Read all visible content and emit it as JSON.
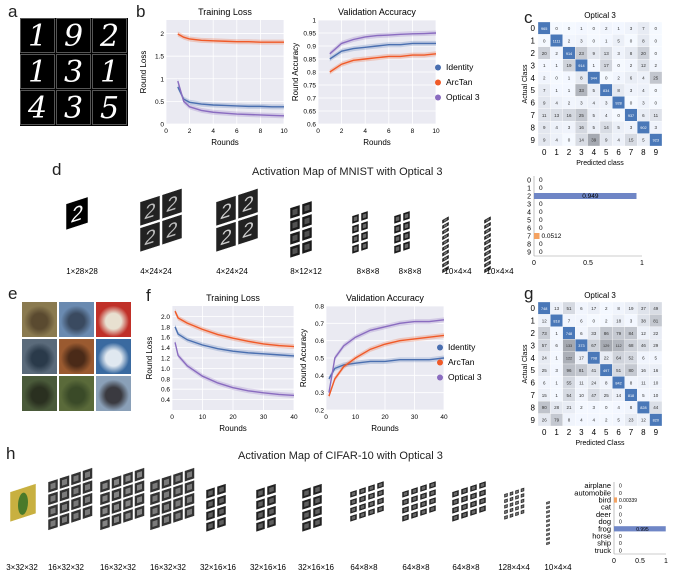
{
  "panel_labels": [
    "a",
    "b",
    "c",
    "d",
    "e",
    "f",
    "g",
    "h"
  ],
  "mnist": {
    "digits": [
      "1",
      "9",
      "2",
      "1",
      "3",
      "1",
      "4",
      "3",
      "5"
    ],
    "loss_title": "Training Loss",
    "acc_title": "Validation Accuracy",
    "loss_ylabel": "Round Loss",
    "acc_ylabel": "Round Accuracy",
    "xlabel": "Rounds",
    "conf_title": "Optical 3",
    "conf_ylabel": "Actual Class",
    "conf_xlabel": "Predicted class",
    "act_title": "Activation Map of MNIST with Optical 3",
    "act_dims": [
      "1×28×28",
      "4×24×24",
      "4×24×24",
      "8×12×12",
      "8×8×8",
      "8×8×8",
      "10×4×4",
      "10×4×4"
    ],
    "input_digit": "2"
  },
  "cifar": {
    "loss_title": "Training Loss",
    "acc_title": "Validation Accuracy",
    "loss_ylabel": "Round Loss",
    "acc_ylabel": "Round Accuracy",
    "xlabel": "Rounds",
    "conf_title": "Optical 3",
    "conf_ylabel": "Actual Class",
    "conf_xlabel": "Predicted Class",
    "act_title": "Activation Map of CIFAR-10 with Optical 3",
    "act_dims": [
      "3×32×32",
      "16×32×32",
      "16×32×32",
      "16×32×32",
      "32×16×16",
      "32×16×16",
      "32×16×16",
      "64×8×8",
      "64×8×8",
      "64×8×8",
      "128×4×4",
      "10×4×4"
    ]
  },
  "legend": [
    "Identity",
    "ArcTan",
    "Optical 3"
  ],
  "colors": {
    "identity": "#4a6fb0",
    "arctan": "#f05a28",
    "optical": "#8a6cc0",
    "conf_dark": "#4a78b8",
    "bar_blue": "#6f86c6",
    "bar_orange": "#f4a261"
  },
  "chart_data": [
    {
      "type": "line",
      "title": "Training Loss",
      "xlabel": "Rounds",
      "ylabel": "Round Loss",
      "xlim": [
        0,
        10
      ],
      "ylim": [
        0,
        2.3
      ],
      "xticks": [
        0,
        2,
        4,
        6,
        8,
        10
      ],
      "yticks": [
        0,
        0.5,
        1,
        1.5,
        2
      ],
      "series": [
        {
          "name": "Identity",
          "x": [
            1,
            1.5,
            2,
            3,
            4,
            5,
            6,
            7,
            8,
            9,
            10
          ],
          "values": [
            0.82,
            0.55,
            0.48,
            0.44,
            0.42,
            0.41,
            0.4,
            0.39,
            0.39,
            0.38,
            0.38
          ]
        },
        {
          "name": "ArcTan",
          "x": [
            1,
            1.5,
            2,
            3,
            4,
            5,
            6,
            7,
            8,
            9,
            10
          ],
          "values": [
            1.99,
            1.92,
            1.88,
            1.85,
            1.84,
            1.83,
            1.82,
            1.82,
            1.81,
            1.81,
            1.81
          ]
        },
        {
          "name": "Optical 3",
          "x": [
            1,
            1.5,
            2,
            3,
            4,
            5,
            6,
            7,
            8,
            9,
            10
          ],
          "values": [
            0.95,
            0.5,
            0.38,
            0.3,
            0.26,
            0.24,
            0.22,
            0.21,
            0.2,
            0.19,
            0.18
          ]
        }
      ]
    },
    {
      "type": "line",
      "title": "Validation Accuracy",
      "xlabel": "Rounds",
      "ylabel": "Round Accuracy",
      "xlim": [
        0,
        10
      ],
      "ylim": [
        0.6,
        1.0
      ],
      "xticks": [
        0,
        2,
        4,
        6,
        8,
        10
      ],
      "yticks": [
        0.6,
        0.65,
        0.7,
        0.75,
        0.8,
        0.85,
        0.9,
        0.95,
        1.0
      ],
      "series": [
        {
          "name": "Identity",
          "x": [
            1,
            2,
            3,
            4,
            5,
            6,
            7,
            8,
            9,
            10
          ],
          "values": [
            0.85,
            0.88,
            0.89,
            0.895,
            0.9,
            0.905,
            0.905,
            0.91,
            0.91,
            0.91
          ]
        },
        {
          "name": "ArcTan",
          "x": [
            1,
            2,
            3,
            4,
            5,
            6,
            7,
            8,
            9,
            10
          ],
          "values": [
            0.8,
            0.83,
            0.845,
            0.85,
            0.855,
            0.86,
            0.86,
            0.865,
            0.865,
            0.87
          ]
        },
        {
          "name": "Optical 3",
          "x": [
            1,
            2,
            3,
            4,
            5,
            6,
            7,
            8,
            9,
            10
          ],
          "values": [
            0.87,
            0.91,
            0.925,
            0.935,
            0.94,
            0.942,
            0.945,
            0.947,
            0.948,
            0.95
          ]
        }
      ]
    },
    {
      "type": "heatmap",
      "title": "Optical 3",
      "xlabel": "Predicted class",
      "ylabel": "Actual Class",
      "labels": [
        "0",
        "1",
        "2",
        "3",
        "4",
        "5",
        "6",
        "7",
        "8",
        "9"
      ],
      "matrix": [
        [
          965,
          0,
          0,
          1,
          0,
          2,
          1,
          3,
          7,
          0
        ],
        [
          0,
          1111,
          2,
          3,
          0,
          1,
          5,
          0,
          8,
          0
        ],
        [
          20,
          2,
          914,
          23,
          9,
          13,
          3,
          8,
          20,
          0
        ],
        [
          1,
          1,
          19,
          914,
          1,
          17,
          0,
          2,
          12,
          2
        ],
        [
          2,
          0,
          1,
          8,
          944,
          0,
          2,
          6,
          4,
          25
        ],
        [
          7,
          1,
          1,
          33,
          5,
          834,
          8,
          3,
          4,
          0
        ],
        [
          9,
          4,
          2,
          3,
          4,
          3,
          928,
          0,
          3,
          0
        ],
        [
          11,
          13,
          16,
          25,
          5,
          4,
          0,
          937,
          6,
          11
        ],
        [
          9,
          4,
          3,
          16,
          5,
          14,
          5,
          3,
          902,
          3
        ],
        [
          9,
          4,
          0,
          14,
          39,
          9,
          4,
          15,
          5,
          923
        ]
      ]
    },
    {
      "type": "bar",
      "orientation": "horizontal",
      "categories": [
        "0",
        "1",
        "2",
        "3",
        "4",
        "5",
        "6",
        "7",
        "8",
        "9"
      ],
      "values": [
        0,
        0,
        0.949,
        0,
        0,
        0,
        0,
        0.0512,
        0,
        0
      ],
      "value_labels": [
        "0",
        "0",
        "0.949",
        "0",
        "0",
        "0",
        "0",
        "0.0512",
        "0",
        "0"
      ],
      "xticks": [
        0,
        0.5,
        1
      ],
      "xlim": [
        0,
        1
      ]
    },
    {
      "type": "line",
      "title": "Training Loss",
      "xlabel": "Rounds",
      "ylabel": "Round Loss",
      "xlim": [
        0,
        40
      ],
      "ylim": [
        0.2,
        2.2
      ],
      "xticks": [
        0,
        10,
        20,
        30,
        40
      ],
      "yticks": [
        0.4,
        0.6,
        0.8,
        1.0,
        1.2,
        1.4,
        1.6,
        1.8,
        2.0
      ],
      "series": [
        {
          "name": "Identity",
          "x": [
            1,
            2,
            5,
            10,
            15,
            20,
            25,
            30,
            35,
            40
          ],
          "values": [
            1.8,
            1.66,
            1.55,
            1.45,
            1.38,
            1.33,
            1.3,
            1.28,
            1.26,
            1.24
          ]
        },
        {
          "name": "ArcTan",
          "x": [
            1,
            2,
            5,
            10,
            15,
            20,
            25,
            30,
            35,
            40
          ],
          "values": [
            2.1,
            1.97,
            1.87,
            1.75,
            1.65,
            1.58,
            1.52,
            1.47,
            1.44,
            1.42
          ]
        },
        {
          "name": "Optical 3",
          "x": [
            1,
            2,
            5,
            10,
            15,
            20,
            25,
            30,
            35,
            40
          ],
          "values": [
            1.5,
            1.25,
            1.05,
            0.85,
            0.72,
            0.63,
            0.57,
            0.53,
            0.5,
            0.48
          ]
        }
      ]
    },
    {
      "type": "line",
      "title": "Validation Accuracy",
      "xlabel": "Rounds",
      "ylabel": "Round Accuracy",
      "xlim": [
        0,
        40
      ],
      "ylim": [
        0.2,
        0.8
      ],
      "xticks": [
        0,
        10,
        20,
        30,
        40
      ],
      "yticks": [
        0.2,
        0.3,
        0.4,
        0.5,
        0.6,
        0.7,
        0.8
      ],
      "series": [
        {
          "name": "Identity",
          "x": [
            1,
            3,
            6,
            10,
            15,
            20,
            25,
            30,
            35,
            40
          ],
          "values": [
            0.38,
            0.44,
            0.46,
            0.47,
            0.48,
            0.48,
            0.49,
            0.49,
            0.49,
            0.5
          ]
        },
        {
          "name": "ArcTan",
          "x": [
            1,
            3,
            6,
            10,
            15,
            20,
            25,
            30,
            35,
            40
          ],
          "values": [
            0.28,
            0.38,
            0.45,
            0.5,
            0.55,
            0.58,
            0.6,
            0.61,
            0.62,
            0.63
          ]
        },
        {
          "name": "Optical 3",
          "x": [
            1,
            3,
            6,
            10,
            15,
            20,
            25,
            30,
            35,
            40
          ],
          "values": [
            0.3,
            0.5,
            0.57,
            0.62,
            0.66,
            0.68,
            0.7,
            0.71,
            0.71,
            0.72
          ]
        }
      ]
    },
    {
      "type": "heatmap",
      "title": "Optical 3",
      "xlabel": "Predicted Class",
      "ylabel": "Actual Class",
      "labels": [
        "0",
        "1",
        "2",
        "3",
        "4",
        "5",
        "6",
        "7",
        "8",
        "9"
      ],
      "matrix": [
        [
          748,
          13,
          51,
          6,
          17,
          2,
          8,
          19,
          37,
          49
        ],
        [
          12,
          818,
          7,
          6,
          0,
          2,
          18,
          3,
          38,
          81
        ],
        [
          73,
          1,
          748,
          6,
          33,
          86,
          79,
          84,
          12,
          22
        ],
        [
          57,
          6,
          133,
          373,
          67,
          129,
          112,
          68,
          46,
          29
        ],
        [
          24,
          1,
          122,
          17,
          708,
          22,
          64,
          52,
          6,
          5
        ],
        [
          25,
          3,
          96,
          81,
          41,
          497,
          51,
          80,
          16,
          16
        ],
        [
          6,
          1,
          55,
          11,
          24,
          8,
          842,
          8,
          11,
          10
        ],
        [
          15,
          1,
          54,
          10,
          47,
          25,
          14,
          818,
          5,
          10
        ],
        [
          90,
          28,
          21,
          2,
          3,
          0,
          4,
          8,
          828,
          44
        ],
        [
          26,
          79,
          8,
          4,
          4,
          2,
          5,
          23,
          12,
          820
        ]
      ]
    },
    {
      "type": "bar",
      "orientation": "horizontal",
      "categories": [
        "airplane",
        "automobile",
        "bird",
        "cat",
        "deer",
        "dog",
        "frog",
        "horse",
        "ship",
        "truck"
      ],
      "values": [
        0,
        0,
        0.00339,
        0,
        0,
        0,
        0.995,
        0,
        0,
        0
      ],
      "value_labels": [
        "0",
        "0",
        "0.00339",
        "0",
        "0",
        "0",
        "0.995",
        "0",
        "0",
        "0"
      ],
      "xticks": [
        0,
        0.5,
        1
      ],
      "xlim": [
        0,
        1
      ]
    }
  ]
}
